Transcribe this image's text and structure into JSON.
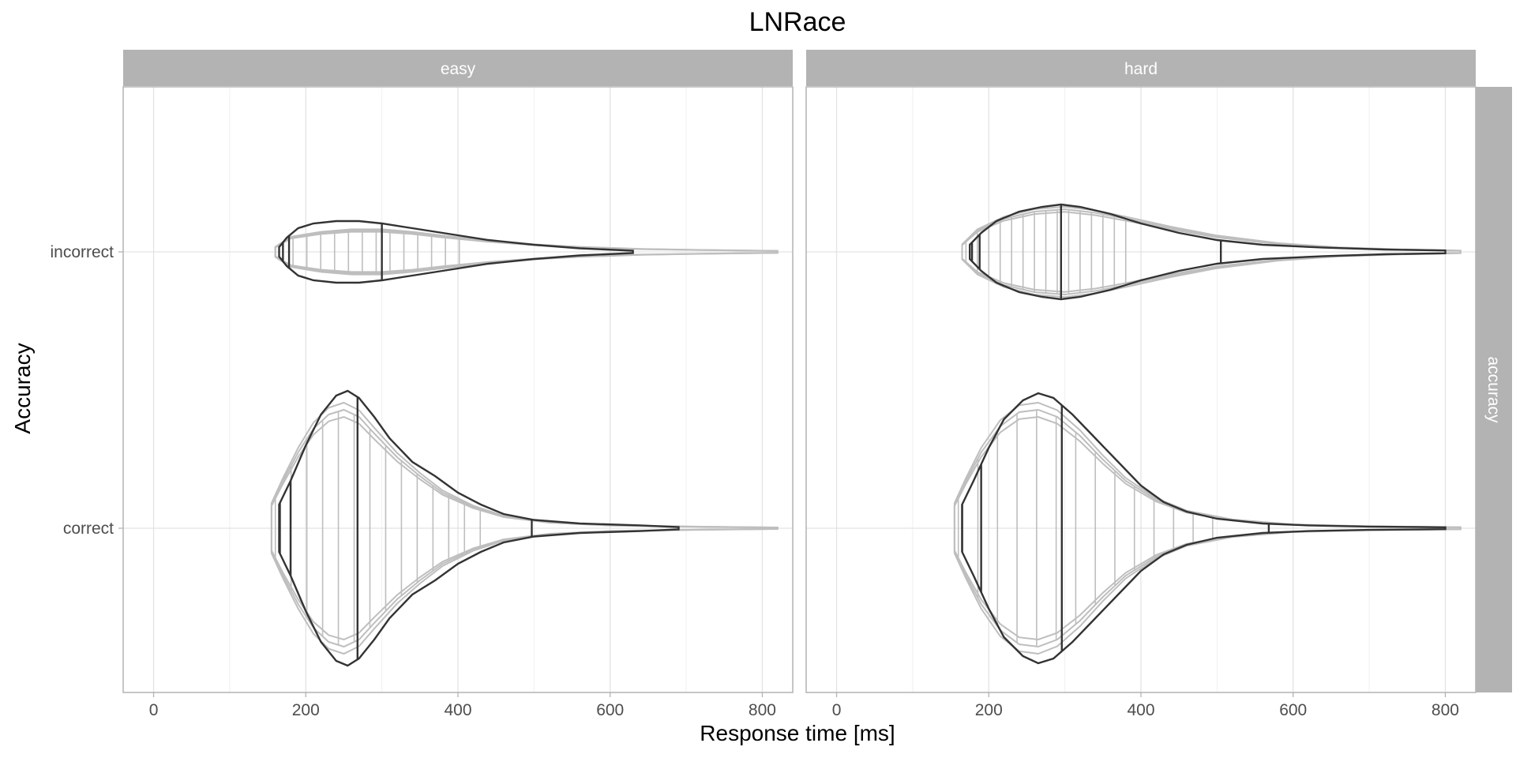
{
  "chart_data": {
    "type": "violin",
    "title": "LNRace",
    "xlabel": "Response time [ms]",
    "ylabel": "Accuracy",
    "xlim": [
      -40,
      840
    ],
    "x_ticks": [
      0,
      200,
      400,
      600,
      800
    ],
    "x_tick_labels": [
      "0",
      "200",
      "400",
      "600",
      "800"
    ],
    "categories": [
      "incorrect",
      "correct"
    ],
    "row_strip_label": "accuracy",
    "grid": true,
    "colors": {
      "strip_bg": "#b3b3b3",
      "strip_text": "#ffffff",
      "observed_line": "#333333",
      "predicted_line": "#bebebe",
      "grid": "#e3e3e3",
      "panel_border": "#b3b3b3",
      "axis_text": "#4d4d4d"
    },
    "panels": [
      {
        "label": "easy",
        "observed": {
          "incorrect": {
            "density_x": [
              165,
              175,
              190,
              210,
              240,
              270,
              300,
              340,
              380,
              440,
              500,
              560,
              630
            ],
            "density_halfwidth": [
              0.02,
              0.06,
              0.1,
              0.12,
              0.13,
              0.13,
              0.12,
              0.1,
              0.08,
              0.05,
              0.03,
              0.015,
              0.005
            ],
            "quantiles": [
              170,
              178,
              300
            ]
          },
          "correct": {
            "density_x": [
              165,
              180,
              200,
              220,
              240,
              255,
              270,
              290,
              310,
              340,
              370,
              400,
              430,
              460,
              500,
              560,
              640,
              690
            ],
            "density_halfwidth": [
              0.1,
              0.2,
              0.35,
              0.48,
              0.56,
              0.58,
              0.55,
              0.47,
              0.38,
              0.28,
              0.22,
              0.15,
              0.1,
              0.06,
              0.035,
              0.02,
              0.012,
              0.005
            ],
            "quantiles": [
              166,
              180,
              268,
              497
            ]
          }
        },
        "predicted": {
          "incorrect": {
            "density_x": [
              160,
              180,
              220,
              260,
              300,
              340,
              380,
              440,
              500,
              560,
              640,
              720,
              820
            ],
            "density_halfwidth": [
              0.02,
              0.06,
              0.08,
              0.09,
              0.09,
              0.08,
              0.065,
              0.045,
              0.03,
              0.02,
              0.012,
              0.008,
              0.004
            ],
            "quantile_range": [
              165,
              420
            ]
          },
          "correct": {
            "density_x": [
              155,
              170,
              190,
              210,
              230,
              250,
              270,
              290,
              320,
              350,
              380,
              420,
              460,
              520,
              600,
              700,
              820
            ],
            "density_halfwidth": [
              0.1,
              0.2,
              0.32,
              0.42,
              0.48,
              0.5,
              0.47,
              0.4,
              0.3,
              0.22,
              0.15,
              0.09,
              0.05,
              0.025,
              0.012,
              0.007,
              0.003
            ],
            "quantile_range": [
              160,
              450
            ]
          }
        }
      },
      {
        "label": "hard",
        "observed": {
          "incorrect": {
            "density_x": [
              175,
              190,
              210,
              240,
              270,
              295,
              320,
              360,
              400,
              450,
              500,
              560,
              640,
              720,
              800
            ],
            "density_halfwidth": [
              0.03,
              0.08,
              0.13,
              0.17,
              0.19,
              0.2,
              0.19,
              0.16,
              0.12,
              0.08,
              0.05,
              0.03,
              0.018,
              0.01,
              0.006
            ],
            "quantiles": [
              178,
              188,
              295,
              505
            ]
          },
          "correct": {
            "density_x": [
              165,
              180,
              200,
              220,
              245,
              265,
              285,
              310,
              340,
              370,
              400,
              430,
              460,
              500,
              560,
              620,
              700,
              800
            ],
            "density_halfwidth": [
              0.1,
              0.2,
              0.34,
              0.46,
              0.54,
              0.57,
              0.55,
              0.48,
              0.38,
              0.28,
              0.18,
              0.11,
              0.07,
              0.04,
              0.02,
              0.012,
              0.007,
              0.004
            ],
            "quantiles": [
              165,
              190,
              296,
              568
            ]
          }
        },
        "predicted": {
          "incorrect": {
            "density_x": [
              165,
              185,
              220,
              260,
              300,
              340,
              380,
              440,
              500,
              580,
              660,
              740,
              820
            ],
            "density_halfwidth": [
              0.03,
              0.09,
              0.14,
              0.17,
              0.18,
              0.165,
              0.14,
              0.1,
              0.065,
              0.035,
              0.018,
              0.01,
              0.005
            ],
            "quantile_range": [
              170,
              380
            ]
          },
          "correct": {
            "density_x": [
              155,
              170,
              190,
              215,
              240,
              265,
              290,
              320,
              350,
              380,
              420,
              460,
              520,
              600,
              700,
              820
            ],
            "density_halfwidth": [
              0.1,
              0.2,
              0.32,
              0.43,
              0.49,
              0.5,
              0.47,
              0.39,
              0.29,
              0.2,
              0.12,
              0.07,
              0.035,
              0.015,
              0.008,
              0.004
            ],
            "quantile_range": [
              160,
              520
            ]
          }
        }
      }
    ]
  }
}
